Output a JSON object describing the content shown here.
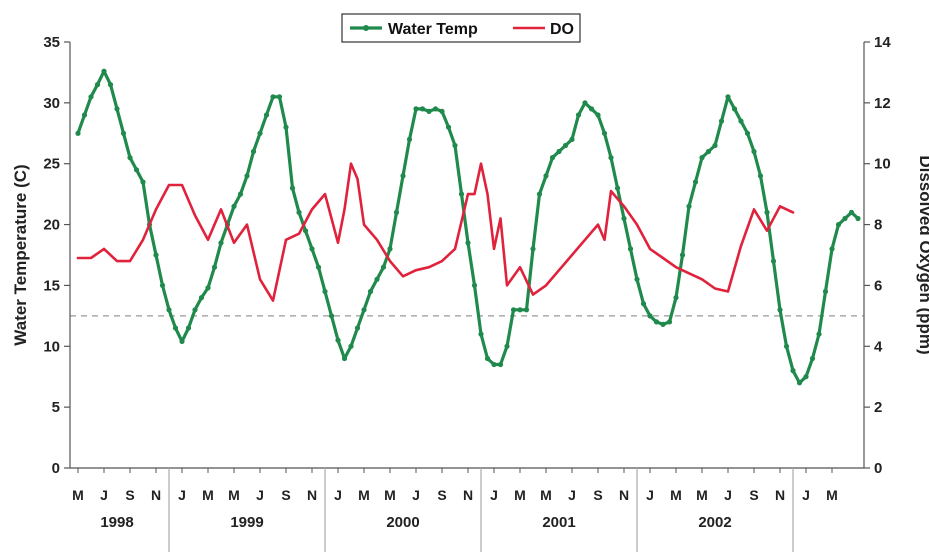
{
  "chart_data": {
    "type": "line",
    "ylabel_left": "Water Temperature (C)",
    "ylabel_right": "Dissolved Oxygen (ppm)",
    "ylim_left": [
      0,
      35
    ],
    "ylim_right": [
      0,
      14
    ],
    "yticks_left": [
      0,
      5,
      10,
      15,
      20,
      25,
      30,
      35
    ],
    "yticks_right": [
      0,
      2,
      4,
      6,
      8,
      10,
      12,
      14
    ],
    "x_range": [
      0,
      60
    ],
    "legend": {
      "position": "top-center",
      "items": [
        "Water Temp",
        "DO"
      ]
    },
    "reference_line": {
      "axis": "left",
      "value": 12.5,
      "style": "dashed"
    },
    "month_ticks": [
      {
        "x": 0,
        "label": "M"
      },
      {
        "x": 2,
        "label": "J"
      },
      {
        "x": 4,
        "label": "S"
      },
      {
        "x": 6,
        "label": "N"
      },
      {
        "x": 8,
        "label": "J"
      },
      {
        "x": 10,
        "label": "M"
      },
      {
        "x": 12,
        "label": "M"
      },
      {
        "x": 14,
        "label": "J"
      },
      {
        "x": 16,
        "label": "S"
      },
      {
        "x": 18,
        "label": "N"
      },
      {
        "x": 20,
        "label": "J"
      },
      {
        "x": 22,
        "label": "M"
      },
      {
        "x": 24,
        "label": "M"
      },
      {
        "x": 26,
        "label": "J"
      },
      {
        "x": 28,
        "label": "S"
      },
      {
        "x": 30,
        "label": "N"
      },
      {
        "x": 32,
        "label": "J"
      },
      {
        "x": 34,
        "label": "M"
      },
      {
        "x": 36,
        "label": "M"
      },
      {
        "x": 38,
        "label": "J"
      },
      {
        "x": 40,
        "label": "S"
      },
      {
        "x": 42,
        "label": "N"
      },
      {
        "x": 44,
        "label": "J"
      },
      {
        "x": 46,
        "label": "M"
      },
      {
        "x": 48,
        "label": "M"
      },
      {
        "x": 50,
        "label": "J"
      },
      {
        "x": 52,
        "label": "S"
      },
      {
        "x": 54,
        "label": "N"
      },
      {
        "x": 56,
        "label": "J"
      },
      {
        "x": 58,
        "label": "M"
      }
    ],
    "years": [
      {
        "label": "1998",
        "center": 3
      },
      {
        "label": "1999",
        "center": 13
      },
      {
        "label": "2000",
        "center": 25
      },
      {
        "label": "2001",
        "center": 37
      },
      {
        "label": "2002",
        "center": 49
      }
    ],
    "year_separators": [
      7,
      19,
      31,
      43,
      55
    ],
    "series": [
      {
        "name": "Water Temp",
        "axis": "left",
        "color": "#1f8a4c",
        "markers": true,
        "points": [
          [
            0,
            27.5
          ],
          [
            0.5,
            29
          ],
          [
            1,
            30.5
          ],
          [
            1.5,
            31.5
          ],
          [
            2,
            32.6
          ],
          [
            2.5,
            31.5
          ],
          [
            3,
            29.5
          ],
          [
            3.5,
            27.5
          ],
          [
            4,
            25.5
          ],
          [
            4.5,
            24.5
          ],
          [
            5,
            23.5
          ],
          [
            5.5,
            20
          ],
          [
            6,
            17.5
          ],
          [
            6.5,
            15
          ],
          [
            7,
            13
          ],
          [
            7.5,
            11.5
          ],
          [
            8,
            10.4
          ],
          [
            8.5,
            11.5
          ],
          [
            9,
            13
          ],
          [
            9.5,
            14
          ],
          [
            10,
            14.8
          ],
          [
            10.5,
            16.5
          ],
          [
            11,
            18.5
          ],
          [
            11.5,
            20
          ],
          [
            12,
            21.5
          ],
          [
            12.5,
            22.5
          ],
          [
            13,
            24
          ],
          [
            13.5,
            26
          ],
          [
            14,
            27.5
          ],
          [
            14.5,
            29
          ],
          [
            15,
            30.5
          ],
          [
            15.5,
            30.5
          ],
          [
            16,
            28
          ],
          [
            16.5,
            23
          ],
          [
            17,
            21
          ],
          [
            17.5,
            19.5
          ],
          [
            18,
            18
          ],
          [
            18.5,
            16.5
          ],
          [
            19,
            14.5
          ],
          [
            19.5,
            12.5
          ],
          [
            20,
            10.5
          ],
          [
            20.5,
            9
          ],
          [
            21,
            10
          ],
          [
            21.5,
            11.5
          ],
          [
            22,
            13
          ],
          [
            22.5,
            14.5
          ],
          [
            23,
            15.5
          ],
          [
            23.5,
            16.5
          ],
          [
            24,
            18
          ],
          [
            24.5,
            21
          ],
          [
            25,
            24
          ],
          [
            25.5,
            27
          ],
          [
            26,
            29.5
          ],
          [
            26.5,
            29.5
          ],
          [
            27,
            29.3
          ],
          [
            27.5,
            29.5
          ],
          [
            28,
            29.3
          ],
          [
            28.5,
            28
          ],
          [
            29,
            26.5
          ],
          [
            29.5,
            22.5
          ],
          [
            30,
            18.5
          ],
          [
            30.5,
            15
          ],
          [
            31,
            11
          ],
          [
            31.5,
            9
          ],
          [
            32,
            8.5
          ],
          [
            32.5,
            8.5
          ],
          [
            33,
            10
          ],
          [
            33.5,
            13
          ],
          [
            34,
            13
          ],
          [
            34.5,
            13
          ],
          [
            35,
            18
          ],
          [
            35.5,
            22.5
          ],
          [
            36,
            24
          ],
          [
            36.5,
            25.5
          ],
          [
            37,
            26
          ],
          [
            37.5,
            26.5
          ],
          [
            38,
            27
          ],
          [
            38.5,
            29
          ],
          [
            39,
            30
          ],
          [
            39.5,
            29.5
          ],
          [
            40,
            29
          ],
          [
            40.5,
            27.5
          ],
          [
            41,
            25.5
          ],
          [
            41.5,
            23
          ],
          [
            42,
            20.5
          ],
          [
            42.5,
            18
          ],
          [
            43,
            15.5
          ],
          [
            43.5,
            13.5
          ],
          [
            44,
            12.5
          ],
          [
            44.5,
            12
          ],
          [
            45,
            11.8
          ],
          [
            45.5,
            12
          ],
          [
            46,
            14
          ],
          [
            46.5,
            17.5
          ],
          [
            47,
            21.5
          ],
          [
            47.5,
            23.5
          ],
          [
            48,
            25.5
          ],
          [
            48.5,
            26
          ],
          [
            49,
            26.5
          ],
          [
            49.5,
            28.5
          ],
          [
            50,
            30.5
          ],
          [
            50.5,
            29.5
          ],
          [
            51,
            28.5
          ],
          [
            51.5,
            27.5
          ],
          [
            52,
            26
          ],
          [
            52.5,
            24
          ],
          [
            53,
            21
          ],
          [
            53.5,
            17
          ],
          [
            54,
            13
          ],
          [
            54.5,
            10
          ],
          [
            55,
            8
          ],
          [
            55.5,
            7
          ],
          [
            56,
            7.5
          ],
          [
            56.5,
            9
          ],
          [
            57,
            11
          ],
          [
            57.5,
            14.5
          ],
          [
            58,
            18
          ],
          [
            58.5,
            20
          ],
          [
            59,
            20.5
          ],
          [
            59.5,
            21
          ],
          [
            60,
            20.5
          ]
        ]
      },
      {
        "name": "DO",
        "axis": "right",
        "color": "#e0223c",
        "markers": false,
        "points": [
          [
            0,
            6.9
          ],
          [
            1,
            6.9
          ],
          [
            2,
            7.2
          ],
          [
            3,
            6.8
          ],
          [
            4,
            6.8
          ],
          [
            5,
            7.5
          ],
          [
            6,
            8.5
          ],
          [
            7,
            9.3
          ],
          [
            8,
            9.3
          ],
          [
            9,
            8.3
          ],
          [
            10,
            7.5
          ],
          [
            11,
            8.5
          ],
          [
            12,
            7.4
          ],
          [
            13,
            8
          ],
          [
            14,
            6.2
          ],
          [
            15,
            5.5
          ],
          [
            16,
            7.5
          ],
          [
            17,
            7.7
          ],
          [
            18,
            8.5
          ],
          [
            19,
            9
          ],
          [
            20,
            7.4
          ],
          [
            20.5,
            8.5
          ],
          [
            21,
            10
          ],
          [
            21.5,
            9.5
          ],
          [
            22,
            8
          ],
          [
            23,
            7.5
          ],
          [
            24,
            6.8
          ],
          [
            25,
            6.3
          ],
          [
            26,
            6.5
          ],
          [
            27,
            6.6
          ],
          [
            28,
            6.8
          ],
          [
            29,
            7.2
          ],
          [
            30,
            9
          ],
          [
            30.5,
            9
          ],
          [
            31,
            10
          ],
          [
            31.5,
            9
          ],
          [
            32,
            7.2
          ],
          [
            32.5,
            8.2
          ],
          [
            33,
            6
          ],
          [
            34,
            6.6
          ],
          [
            35,
            5.7
          ],
          [
            36,
            6
          ],
          [
            37,
            6.5
          ],
          [
            38,
            7
          ],
          [
            39,
            7.5
          ],
          [
            40,
            8
          ],
          [
            40.5,
            7.5
          ],
          [
            41,
            9.1
          ],
          [
            42,
            8.6
          ],
          [
            43,
            8
          ],
          [
            44,
            7.2
          ],
          [
            45,
            6.9
          ],
          [
            46,
            6.6
          ],
          [
            47,
            6.4
          ],
          [
            48,
            6.2
          ],
          [
            49,
            5.9
          ],
          [
            50,
            5.8
          ],
          [
            51,
            7.3
          ],
          [
            52,
            8.5
          ],
          [
            53,
            7.8
          ],
          [
            54,
            8.6
          ],
          [
            55,
            8.4
          ]
        ]
      }
    ]
  }
}
